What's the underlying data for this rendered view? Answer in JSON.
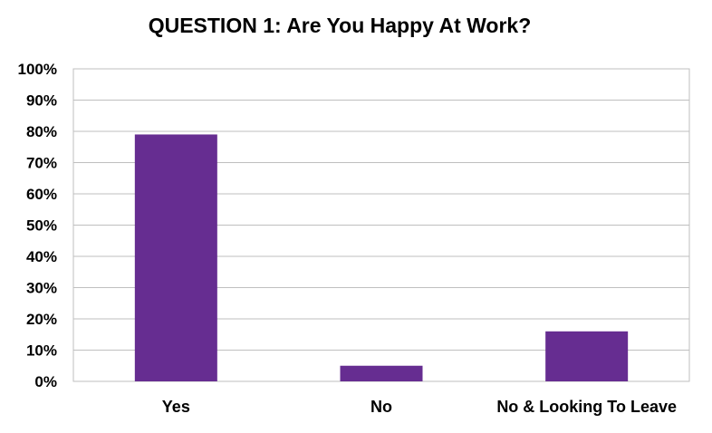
{
  "chart_data": {
    "type": "bar",
    "title": "QUESTION 1: Are You Happy At Work?",
    "categories": [
      "Yes",
      "No",
      "No & Looking To Leave"
    ],
    "values": [
      79,
      5,
      16
    ],
    "value_unit": "%",
    "ylim": [
      0,
      100
    ],
    "yticks": [
      0,
      10,
      20,
      30,
      40,
      50,
      60,
      70,
      80,
      90,
      100
    ],
    "ytick_labels": [
      "0%",
      "10%",
      "20%",
      "30%",
      "40%",
      "50%",
      "60%",
      "70%",
      "80%",
      "90%",
      "100%"
    ],
    "xlabel": "",
    "ylabel": "",
    "grid": true,
    "legend": "none",
    "colors": {
      "bar": "#662D91",
      "grid": "#BFBFBF",
      "text": "#000000"
    }
  }
}
